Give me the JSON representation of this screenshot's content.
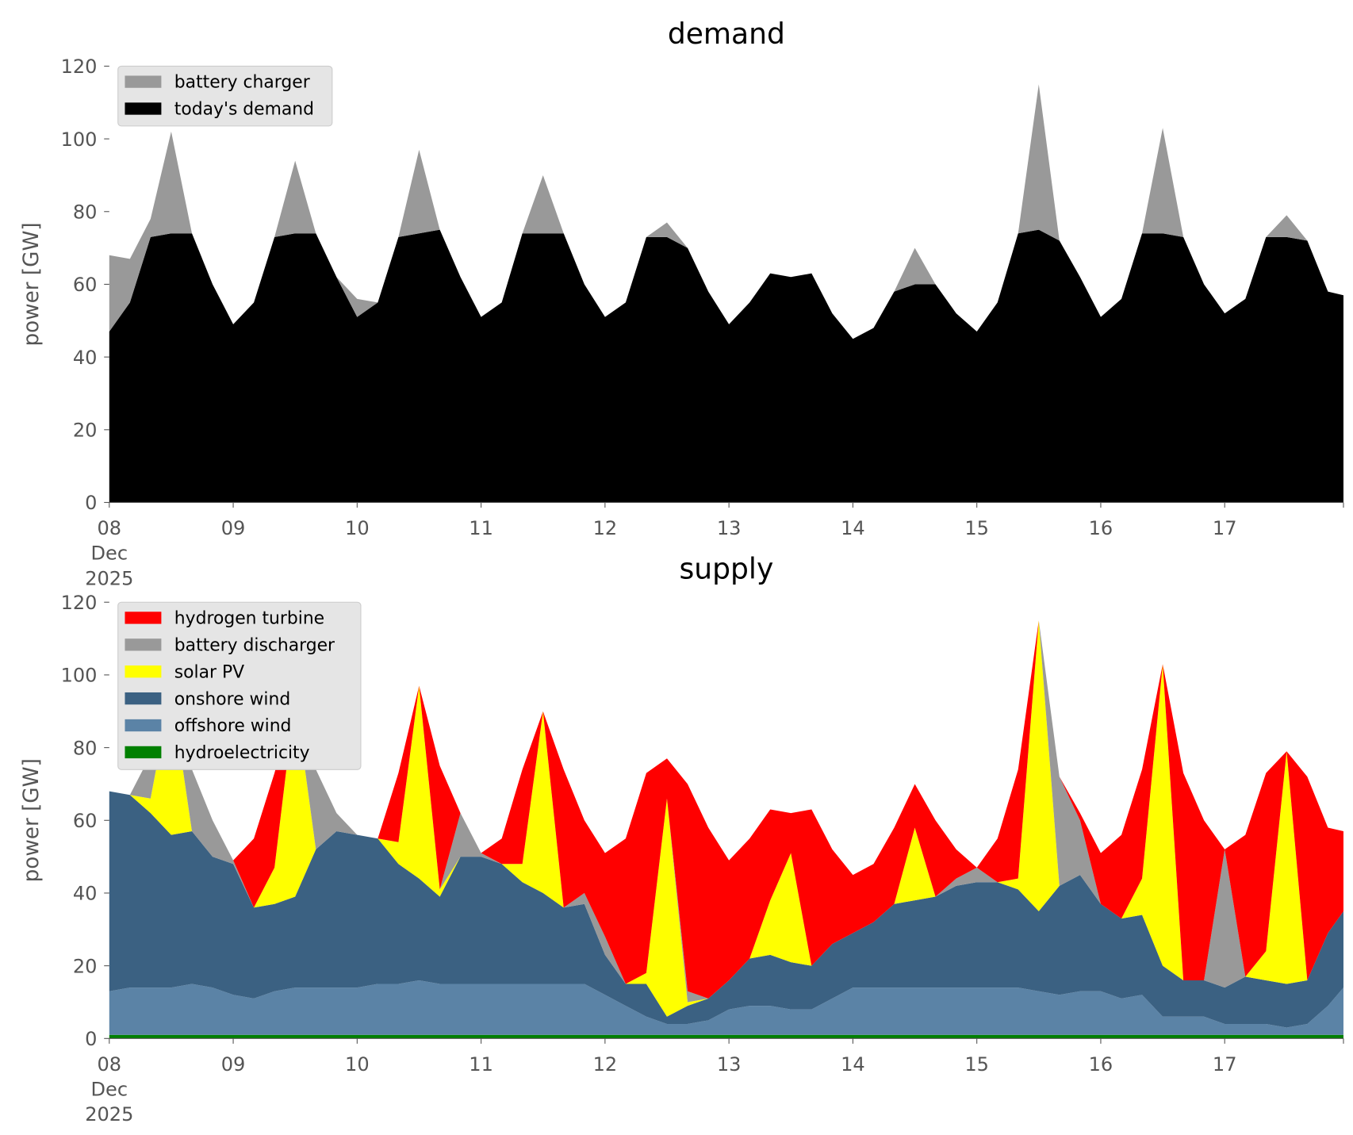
{
  "chart_data": [
    {
      "type": "stacked_area",
      "title": "demand",
      "ylabel": "power [GW]",
      "x": [
        "2025-12-08 00:00",
        "2025-12-08 04:00",
        "2025-12-08 08:00",
        "2025-12-08 12:00",
        "2025-12-08 16:00",
        "2025-12-08 20:00",
        "2025-12-09 00:00",
        "2025-12-09 04:00",
        "2025-12-09 08:00",
        "2025-12-09 12:00",
        "2025-12-09 16:00",
        "2025-12-09 20:00",
        "2025-12-10 00:00",
        "2025-12-10 04:00",
        "2025-12-10 08:00",
        "2025-12-10 12:00",
        "2025-12-10 16:00",
        "2025-12-10 20:00",
        "2025-12-11 00:00",
        "2025-12-11 04:00",
        "2025-12-11 08:00",
        "2025-12-11 12:00",
        "2025-12-11 16:00",
        "2025-12-11 20:00",
        "2025-12-12 00:00",
        "2025-12-12 04:00",
        "2025-12-12 08:00",
        "2025-12-12 12:00",
        "2025-12-12 16:00",
        "2025-12-12 20:00",
        "2025-12-13 00:00",
        "2025-12-13 04:00",
        "2025-12-13 08:00",
        "2025-12-13 12:00",
        "2025-12-13 16:00",
        "2025-12-13 20:00",
        "2025-12-14 00:00",
        "2025-12-14 04:00",
        "2025-12-14 08:00",
        "2025-12-14 12:00",
        "2025-12-14 16:00",
        "2025-12-14 20:00",
        "2025-12-15 00:00",
        "2025-12-15 04:00",
        "2025-12-15 08:00",
        "2025-12-15 12:00",
        "2025-12-15 16:00",
        "2025-12-15 20:00",
        "2025-12-16 00:00",
        "2025-12-16 04:00",
        "2025-12-16 08:00",
        "2025-12-16 12:00",
        "2025-12-16 16:00",
        "2025-12-16 20:00",
        "2025-12-17 00:00",
        "2025-12-17 04:00",
        "2025-12-17 08:00",
        "2025-12-17 12:00",
        "2025-12-17 16:00",
        "2025-12-17 20:00",
        "2025-12-17 23:00"
      ],
      "series": [
        {
          "name": "battery charger",
          "color": "#999999",
          "values": [
            21,
            12,
            5,
            28,
            0,
            0,
            0,
            0,
            0,
            20,
            0,
            0,
            5,
            0,
            0,
            23,
            0,
            0,
            0,
            0,
            0,
            16,
            0,
            0,
            0,
            0,
            0,
            4,
            0,
            0,
            0,
            0,
            0,
            0,
            0,
            0,
            0,
            0,
            0,
            10,
            0,
            0,
            0,
            0,
            0,
            40,
            0,
            0,
            0,
            0,
            0,
            29,
            0,
            0,
            0,
            0,
            0,
            6,
            0,
            0,
            0
          ]
        },
        {
          "name": "today's demand",
          "color": "#000000",
          "values": [
            47,
            55,
            73,
            74,
            74,
            60,
            49,
            55,
            73,
            74,
            74,
            62,
            51,
            55,
            73,
            74,
            75,
            62,
            51,
            55,
            74,
            74,
            74,
            60,
            51,
            55,
            73,
            73,
            70,
            58,
            49,
            55,
            63,
            62,
            63,
            52,
            45,
            48,
            58,
            60,
            60,
            52,
            47,
            55,
            74,
            75,
            72,
            62,
            51,
            56,
            74,
            74,
            73,
            60,
            52,
            56,
            73,
            73,
            72,
            58,
            57
          ]
        }
      ],
      "xlim": [
        "2025-12-08 00:00",
        "2025-12-17 23:00"
      ],
      "xticks": [
        {
          "value": "2025-12-08 00:00",
          "label": "08\nDec\n2025"
        },
        {
          "value": "2025-12-09 00:00",
          "label": "09"
        },
        {
          "value": "2025-12-10 00:00",
          "label": "10"
        },
        {
          "value": "2025-12-11 00:00",
          "label": "11"
        },
        {
          "value": "2025-12-12 00:00",
          "label": "12"
        },
        {
          "value": "2025-12-13 00:00",
          "label": "13"
        },
        {
          "value": "2025-12-14 00:00",
          "label": "14"
        },
        {
          "value": "2025-12-15 00:00",
          "label": "15"
        },
        {
          "value": "2025-12-16 00:00",
          "label": "16"
        },
        {
          "value": "2025-12-17 00:00",
          "label": "17"
        }
      ],
      "ylim": [
        0,
        120
      ],
      "yticks": [
        0,
        20,
        40,
        60,
        80,
        100,
        120
      ],
      "legend": "upper left"
    },
    {
      "type": "stacked_area",
      "title": "supply",
      "ylabel": "power [GW]",
      "x": [
        "2025-12-08 00:00",
        "2025-12-08 04:00",
        "2025-12-08 08:00",
        "2025-12-08 12:00",
        "2025-12-08 16:00",
        "2025-12-08 20:00",
        "2025-12-09 00:00",
        "2025-12-09 04:00",
        "2025-12-09 08:00",
        "2025-12-09 12:00",
        "2025-12-09 16:00",
        "2025-12-09 20:00",
        "2025-12-10 00:00",
        "2025-12-10 04:00",
        "2025-12-10 08:00",
        "2025-12-10 12:00",
        "2025-12-10 16:00",
        "2025-12-10 20:00",
        "2025-12-11 00:00",
        "2025-12-11 04:00",
        "2025-12-11 08:00",
        "2025-12-11 12:00",
        "2025-12-11 16:00",
        "2025-12-11 20:00",
        "2025-12-12 00:00",
        "2025-12-12 04:00",
        "2025-12-12 08:00",
        "2025-12-12 12:00",
        "2025-12-12 16:00",
        "2025-12-12 20:00",
        "2025-12-13 00:00",
        "2025-12-13 04:00",
        "2025-12-13 08:00",
        "2025-12-13 12:00",
        "2025-12-13 16:00",
        "2025-12-13 20:00",
        "2025-12-14 00:00",
        "2025-12-14 04:00",
        "2025-12-14 08:00",
        "2025-12-14 12:00",
        "2025-12-14 16:00",
        "2025-12-14 20:00",
        "2025-12-15 00:00",
        "2025-12-15 04:00",
        "2025-12-15 08:00",
        "2025-12-15 12:00",
        "2025-12-15 16:00",
        "2025-12-15 20:00",
        "2025-12-16 00:00",
        "2025-12-16 04:00",
        "2025-12-16 08:00",
        "2025-12-16 12:00",
        "2025-12-16 16:00",
        "2025-12-16 20:00",
        "2025-12-17 00:00",
        "2025-12-17 04:00",
        "2025-12-17 08:00",
        "2025-12-17 12:00",
        "2025-12-17 16:00",
        "2025-12-17 20:00",
        "2025-12-17 23:00"
      ],
      "series": [
        {
          "name": "hydrogen turbine",
          "color": "#ff0000",
          "values": [
            0,
            0,
            0,
            0,
            0,
            0,
            0,
            19,
            26,
            0,
            0,
            0,
            0,
            0,
            19,
            0,
            34,
            0,
            0,
            7,
            26,
            0,
            38,
            20,
            23,
            40,
            55,
            11,
            57,
            47,
            33,
            33,
            25,
            11,
            43,
            26,
            16,
            16,
            21,
            12,
            21,
            8,
            0,
            12,
            30,
            0,
            0,
            2,
            14,
            23,
            30,
            0,
            57,
            44,
            0,
            39,
            49,
            0,
            56,
            29,
            22
          ]
        },
        {
          "name": "battery discharger",
          "color": "#999999",
          "values": [
            0,
            0,
            12,
            6,
            17,
            10,
            1,
            0,
            0,
            0,
            22,
            5,
            0,
            0,
            0,
            0,
            0,
            12,
            1,
            0,
            0,
            0,
            0,
            3,
            5,
            0,
            0,
            0,
            3,
            0,
            0,
            0,
            0,
            0,
            0,
            0,
            0,
            0,
            0,
            0,
            0,
            2,
            4,
            0,
            0,
            0,
            30,
            15,
            0,
            0,
            0,
            0,
            0,
            0,
            38,
            0,
            0,
            0,
            0,
            0,
            0
          ]
        },
        {
          "name": "solar PV",
          "color": "#ffff00",
          "values": [
            0,
            0,
            4,
            40,
            0,
            0,
            0,
            0,
            10,
            55,
            0,
            0,
            0,
            0,
            6,
            53,
            2,
            0,
            0,
            0,
            5,
            50,
            0,
            0,
            0,
            0,
            3,
            60,
            1,
            0,
            0,
            0,
            15,
            30,
            0,
            0,
            0,
            0,
            0,
            20,
            0,
            0,
            0,
            0,
            3,
            80,
            0,
            0,
            0,
            0,
            10,
            83,
            0,
            0,
            0,
            0,
            8,
            64,
            0,
            0,
            0
          ]
        },
        {
          "name": "onshore wind",
          "color": "#3b6182",
          "values": [
            55,
            53,
            48,
            42,
            42,
            36,
            36,
            25,
            24,
            25,
            38,
            43,
            42,
            40,
            33,
            28,
            24,
            35,
            35,
            33,
            28,
            25,
            21,
            22,
            11,
            6,
            9,
            2,
            5,
            6,
            8,
            13,
            14,
            13,
            12,
            15,
            15,
            18,
            23,
            24,
            25,
            28,
            29,
            29,
            27,
            22,
            30,
            32,
            24,
            22,
            22,
            14,
            10,
            10,
            10,
            13,
            12,
            12,
            12,
            20,
            21
          ]
        },
        {
          "name": "offshore wind",
          "color": "#5b83a6",
          "values": [
            12,
            13,
            13,
            13,
            14,
            13,
            11,
            10,
            12,
            13,
            13,
            13,
            13,
            14,
            14,
            15,
            14,
            14,
            14,
            14,
            14,
            14,
            14,
            14,
            11,
            8,
            5,
            3,
            3,
            4,
            7,
            8,
            8,
            7,
            7,
            10,
            13,
            13,
            13,
            13,
            13,
            13,
            13,
            13,
            13,
            12,
            11,
            12,
            12,
            10,
            11,
            5,
            5,
            5,
            3,
            3,
            3,
            2,
            3,
            8,
            13
          ]
        },
        {
          "name": "hydroelectricity",
          "color": "#008000",
          "values": [
            1,
            1,
            1,
            1,
            1,
            1,
            1,
            1,
            1,
            1,
            1,
            1,
            1,
            1,
            1,
            1,
            1,
            1,
            1,
            1,
            1,
            1,
            1,
            1,
            1,
            1,
            1,
            1,
            1,
            1,
            1,
            1,
            1,
            1,
            1,
            1,
            1,
            1,
            1,
            1,
            1,
            1,
            1,
            1,
            1,
            1,
            1,
            1,
            1,
            1,
            1,
            1,
            1,
            1,
            1,
            1,
            1,
            1,
            1,
            1,
            1
          ]
        }
      ],
      "xlim": [
        "2025-12-08 00:00",
        "2025-12-17 23:00"
      ],
      "xticks": [
        {
          "value": "2025-12-08 00:00",
          "label": "08\nDec\n2025"
        },
        {
          "value": "2025-12-09 00:00",
          "label": "09"
        },
        {
          "value": "2025-12-10 00:00",
          "label": "10"
        },
        {
          "value": "2025-12-11 00:00",
          "label": "11"
        },
        {
          "value": "2025-12-12 00:00",
          "label": "12"
        },
        {
          "value": "2025-12-13 00:00",
          "label": "13"
        },
        {
          "value": "2025-12-14 00:00",
          "label": "14"
        },
        {
          "value": "2025-12-15 00:00",
          "label": "15"
        },
        {
          "value": "2025-12-16 00:00",
          "label": "16"
        },
        {
          "value": "2025-12-17 00:00",
          "label": "17"
        }
      ],
      "ylim": [
        0,
        120
      ],
      "yticks": [
        0,
        20,
        40,
        60,
        80,
        100,
        120
      ],
      "legend": "upper left"
    }
  ]
}
